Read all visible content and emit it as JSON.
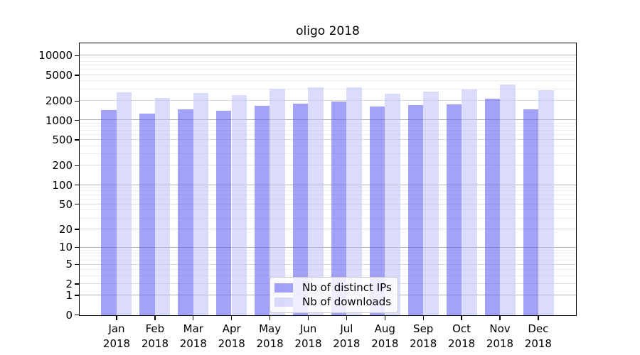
{
  "title": "oligo 2018",
  "legend": {
    "items": [
      {
        "label": "Nb of distinct IPs",
        "series_key": "ips"
      },
      {
        "label": "Nb of downloads",
        "series_key": "downloads"
      }
    ]
  },
  "colors": {
    "ips_bar": "rgba(100,100,240,0.6)",
    "downloads_bar": "rgba(190,190,248,0.55)",
    "grid_decade": "#b2b2b2",
    "grid_major": "#dcdcdc",
    "grid_minor": "#ededed",
    "spine": "#000000",
    "text": "#000000"
  },
  "chart_data": {
    "type": "bar",
    "title": "oligo 2018",
    "year": "2018",
    "categories": [
      "Jan",
      "Feb",
      "Mar",
      "Apr",
      "May",
      "Jun",
      "Jul",
      "Aug",
      "Sep",
      "Oct",
      "Nov",
      "Dec"
    ],
    "series": [
      {
        "name": "Nb of distinct IPs",
        "key": "ips",
        "color": "rgba(100,100,240,0.6)",
        "values": [
          1450,
          1270,
          1480,
          1400,
          1660,
          1800,
          1950,
          1620,
          1700,
          1780,
          2150,
          1460
        ]
      },
      {
        "name": "Nb of downloads",
        "key": "downloads",
        "color": "rgba(190,190,248,0.55)",
        "values": [
          2700,
          2200,
          2650,
          2420,
          3080,
          3200,
          3200,
          2590,
          2750,
          3000,
          3550,
          2900
        ]
      }
    ],
    "xlabel": "",
    "ylabel": "",
    "y_axis": {
      "scale": "log10(1+v)",
      "ticks": [
        0,
        1,
        2,
        5,
        10,
        20,
        50,
        100,
        200,
        500,
        1000,
        2000,
        5000,
        10000
      ],
      "decade_lines": [
        1,
        10,
        100,
        1000,
        10000
      ],
      "minor_mantissas": [
        3,
        4,
        6,
        7,
        8,
        9
      ],
      "minor_exponents": [
        0,
        1,
        2,
        3
      ],
      "top_value": 15350,
      "bottom_value": 0
    },
    "grid": true,
    "legend_position": "lower center inside plot"
  }
}
